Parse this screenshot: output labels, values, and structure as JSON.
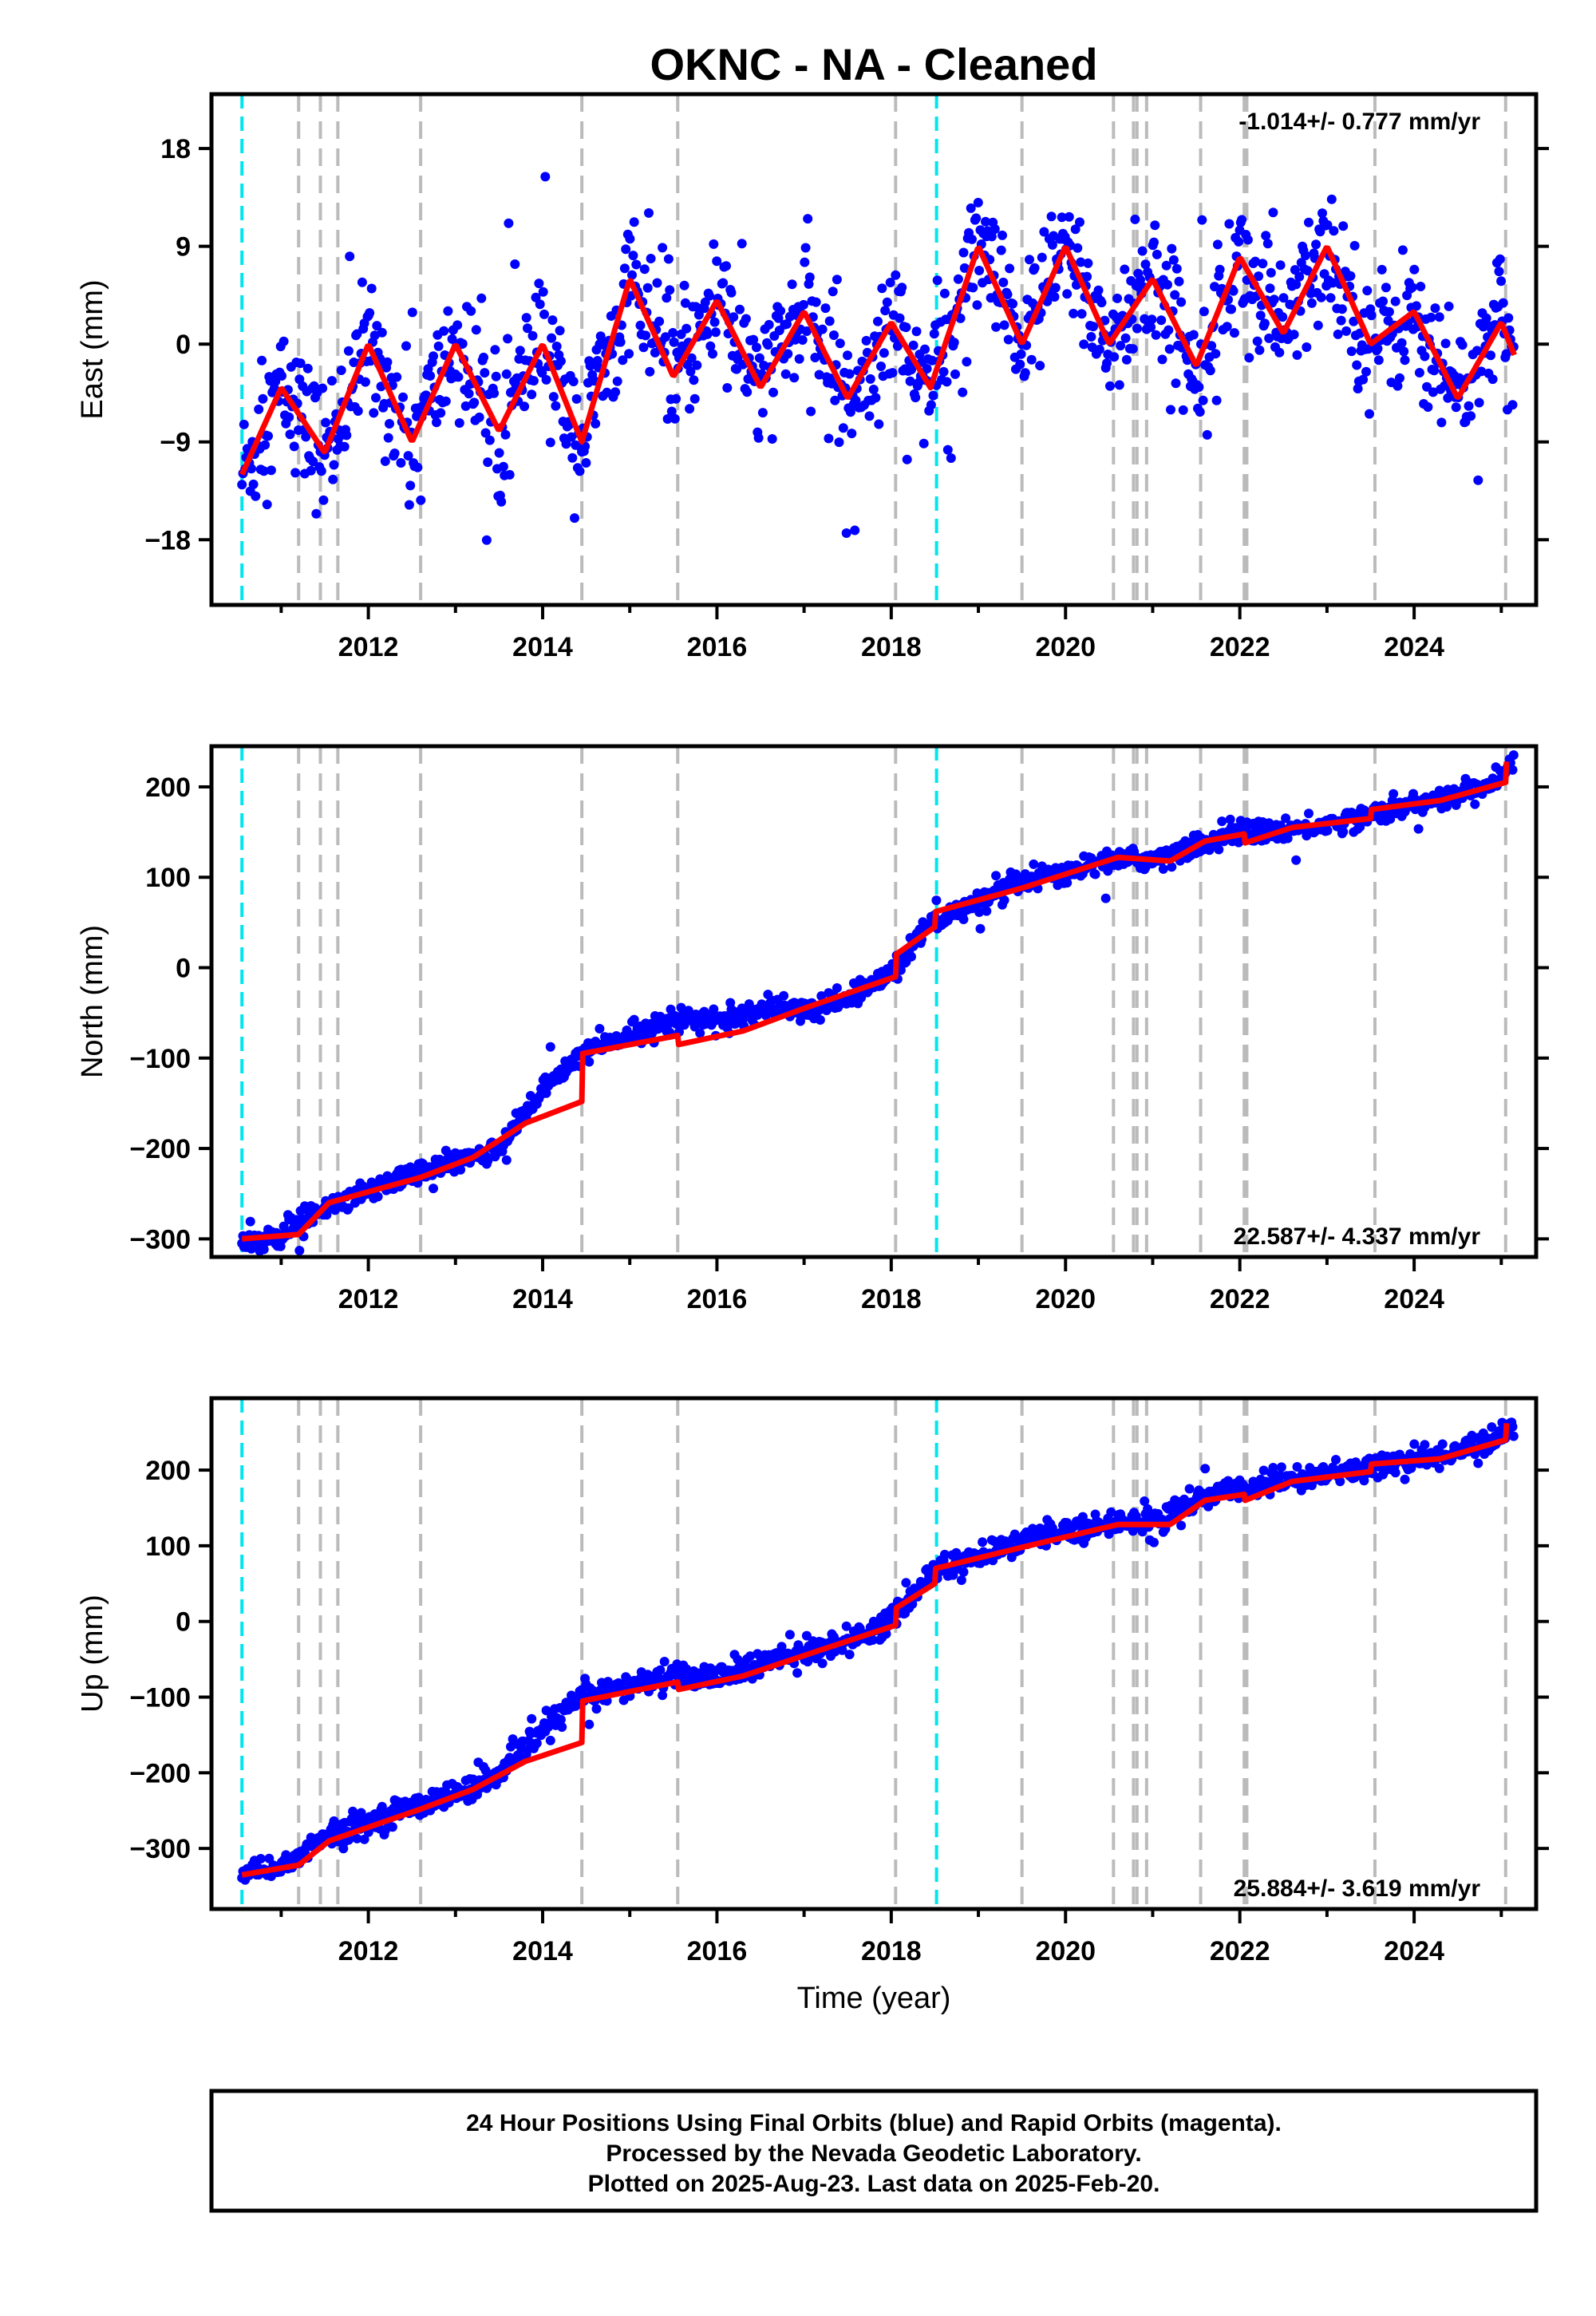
{
  "title": "OKNC  - NA - Cleaned",
  "footer": {
    "line1": "24 Hour Positions Using Final Orbits (blue) and Rapid Orbits (magenta).",
    "line2": "Processed by the Nevada Geodetic Laboratory.",
    "line3": "Plotted on 2025-Aug-23. Last data on 2025-Feb-20."
  },
  "colors": {
    "data_points": "#0000ff",
    "model_fit": "#ff0000",
    "equipment_change_lines": "#00e5ee",
    "other_event_lines": "#bbbbbb"
  },
  "chart_data": [
    {
      "type": "scatter",
      "id": "east",
      "ylabel": "East (mm)",
      "xlabel": "",
      "xlim": [
        2010.2,
        2025.4
      ],
      "ylim": [
        -24,
        23
      ],
      "yticks": [
        -18,
        -9,
        0,
        9,
        18
      ],
      "ytick_labels": [
        "−18",
        "−9",
        "0",
        "9",
        "18"
      ],
      "xticks": [
        2012,
        2014,
        2016,
        2018,
        2020,
        2022,
        2024
      ],
      "xtick_labels": [
        "2012",
        "2014",
        "2016",
        "2018",
        "2020",
        "2022",
        "2024"
      ],
      "rate_text": "-1.014+/- 0.777 mm/yr",
      "rate_position": "top-right",
      "fit": {
        "offset": 0,
        "trend": -1.0,
        "amplitude": 5.5,
        "phase_peak": 0.05,
        "noise": 3.2,
        "steps": [
          [
            2014.5,
            9.5
          ],
          [
            2015.55,
            -4.5
          ],
          [
            2018.5,
            3.0
          ],
          [
            2020.6,
            0
          ],
          [
            2021.6,
            5.5
          ],
          [
            2023.5,
            -6.5
          ]
        ],
        "base_start": -8.5
      },
      "points": [
        {
          "x": 2010.55,
          "y": -12
        },
        {
          "x": 2011.0,
          "y": -4
        },
        {
          "x": 2011.5,
          "y": -10
        },
        {
          "x": 2012.0,
          "y": 0
        },
        {
          "x": 2012.5,
          "y": -9
        },
        {
          "x": 2013.0,
          "y": 0
        },
        {
          "x": 2013.5,
          "y": -8
        },
        {
          "x": 2014.0,
          "y": 0
        },
        {
          "x": 2014.45,
          "y": -9
        },
        {
          "x": 2015.0,
          "y": 6
        },
        {
          "x": 2015.5,
          "y": -3
        },
        {
          "x": 2016.0,
          "y": 4
        },
        {
          "x": 2016.5,
          "y": -4
        },
        {
          "x": 2017.0,
          "y": 3
        },
        {
          "x": 2017.5,
          "y": -5
        },
        {
          "x": 2018.0,
          "y": 2
        },
        {
          "x": 2018.45,
          "y": -4
        },
        {
          "x": 2019.0,
          "y": 9
        },
        {
          "x": 2019.5,
          "y": 0
        },
        {
          "x": 2020.0,
          "y": 9
        },
        {
          "x": 2020.5,
          "y": 0
        },
        {
          "x": 2021.0,
          "y": 6
        },
        {
          "x": 2021.5,
          "y": -2
        },
        {
          "x": 2022.0,
          "y": 8
        },
        {
          "x": 2022.5,
          "y": 1
        },
        {
          "x": 2023.0,
          "y": 9
        },
        {
          "x": 2023.5,
          "y": 0
        },
        {
          "x": 2024.0,
          "y": 3
        },
        {
          "x": 2024.5,
          "y": -5
        },
        {
          "x": 2025.0,
          "y": 2
        },
        {
          "x": 2025.15,
          "y": -1
        }
      ]
    },
    {
      "type": "scatter",
      "id": "north",
      "ylabel": "North (mm)",
      "xlabel": "",
      "xlim": [
        2010.2,
        2025.4
      ],
      "ylim": [
        -320,
        245
      ],
      "yticks": [
        -300,
        -200,
        -100,
        0,
        100,
        200
      ],
      "ytick_labels": [
        "−300",
        "−200",
        "−100",
        "0",
        "100",
        "200"
      ],
      "xticks": [
        2012,
        2014,
        2016,
        2018,
        2020,
        2022,
        2024
      ],
      "xtick_labels": [
        "2012",
        "2014",
        "2016",
        "2018",
        "2020",
        "2022",
        "2024"
      ],
      "rate_text": "22.587+/- 4.337 mm/yr",
      "rate_position": "bottom-right",
      "points": [
        {
          "x": 2010.55,
          "y": -303
        },
        {
          "x": 2011.0,
          "y": -298
        },
        {
          "x": 2011.5,
          "y": -262
        },
        {
          "x": 2012.0,
          "y": -245
        },
        {
          "x": 2012.5,
          "y": -228
        },
        {
          "x": 2013.0,
          "y": -215
        },
        {
          "x": 2013.5,
          "y": -200
        },
        {
          "x": 2014.0,
          "y": -135
        },
        {
          "x": 2014.45,
          "y": -95
        },
        {
          "x": 2015.0,
          "y": -75
        },
        {
          "x": 2015.5,
          "y": -55
        },
        {
          "x": 2016.0,
          "y": -60
        },
        {
          "x": 2016.5,
          "y": -48
        },
        {
          "x": 2017.0,
          "y": -45
        },
        {
          "x": 2017.5,
          "y": -35
        },
        {
          "x": 2018.0,
          "y": -5
        },
        {
          "x": 2018.45,
          "y": 50
        },
        {
          "x": 2019.0,
          "y": 70
        },
        {
          "x": 2019.5,
          "y": 95
        },
        {
          "x": 2020.0,
          "y": 105
        },
        {
          "x": 2020.5,
          "y": 120
        },
        {
          "x": 2021.0,
          "y": 120
        },
        {
          "x": 2021.5,
          "y": 135
        },
        {
          "x": 2022.0,
          "y": 150
        },
        {
          "x": 2022.5,
          "y": 152
        },
        {
          "x": 2023.0,
          "y": 158
        },
        {
          "x": 2023.5,
          "y": 170
        },
        {
          "x": 2024.0,
          "y": 180
        },
        {
          "x": 2024.5,
          "y": 190
        },
        {
          "x": 2025.0,
          "y": 210
        },
        {
          "x": 2025.15,
          "y": 232
        }
      ],
      "fit_points": [
        {
          "x": 2010.55,
          "y": -300
        },
        {
          "x": 2011.2,
          "y": -295
        },
        {
          "x": 2011.55,
          "y": -260
        },
        {
          "x": 2012.6,
          "y": -232
        },
        {
          "x": 2013.2,
          "y": -210
        },
        {
          "x": 2013.8,
          "y": -172
        },
        {
          "x": 2014.45,
          "y": -148
        },
        {
          "x": 2014.46,
          "y": -95
        },
        {
          "x": 2015.55,
          "y": -75
        },
        {
          "x": 2015.56,
          "y": -85
        },
        {
          "x": 2016.3,
          "y": -70
        },
        {
          "x": 2017.0,
          "y": -45
        },
        {
          "x": 2018.05,
          "y": -10
        },
        {
          "x": 2018.06,
          "y": 15
        },
        {
          "x": 2018.5,
          "y": 45
        },
        {
          "x": 2018.51,
          "y": 62
        },
        {
          "x": 2019.5,
          "y": 88
        },
        {
          "x": 2020.6,
          "y": 122
        },
        {
          "x": 2021.2,
          "y": 118
        },
        {
          "x": 2021.6,
          "y": 140
        },
        {
          "x": 2022.05,
          "y": 148
        },
        {
          "x": 2022.06,
          "y": 138
        },
        {
          "x": 2022.6,
          "y": 155
        },
        {
          "x": 2023.5,
          "y": 165
        },
        {
          "x": 2023.51,
          "y": 175
        },
        {
          "x": 2024.3,
          "y": 185
        },
        {
          "x": 2025.05,
          "y": 205
        },
        {
          "x": 2025.06,
          "y": 228
        }
      ]
    },
    {
      "type": "scatter",
      "id": "up",
      "ylabel": "Up (mm)",
      "xlabel": "Time (year)",
      "xlim": [
        2010.2,
        2025.4
      ],
      "ylim": [
        -380,
        295
      ],
      "yticks": [
        -300,
        -200,
        -100,
        0,
        100,
        200
      ],
      "ytick_labels": [
        "−300",
        "−200",
        "−100",
        "0",
        "100",
        "200"
      ],
      "xticks": [
        2012,
        2014,
        2016,
        2018,
        2020,
        2022,
        2024
      ],
      "xtick_labels": [
        "2012",
        "2014",
        "2016",
        "2018",
        "2020",
        "2022",
        "2024"
      ],
      "rate_text": "25.884+/- 3.619 mm/yr",
      "rate_position": "bottom-right",
      "points": [
        {
          "x": 2010.55,
          "y": -335
        },
        {
          "x": 2011.0,
          "y": -325
        },
        {
          "x": 2011.5,
          "y": -285
        },
        {
          "x": 2012.0,
          "y": -265
        },
        {
          "x": 2012.5,
          "y": -245
        },
        {
          "x": 2013.0,
          "y": -228
        },
        {
          "x": 2013.5,
          "y": -205
        },
        {
          "x": 2014.0,
          "y": -145
        },
        {
          "x": 2014.45,
          "y": -100
        },
        {
          "x": 2015.0,
          "y": -85
        },
        {
          "x": 2015.5,
          "y": -70
        },
        {
          "x": 2016.0,
          "y": -75
        },
        {
          "x": 2016.5,
          "y": -55
        },
        {
          "x": 2017.0,
          "y": -42
        },
        {
          "x": 2017.5,
          "y": -25
        },
        {
          "x": 2018.0,
          "y": 0
        },
        {
          "x": 2018.45,
          "y": 65
        },
        {
          "x": 2019.0,
          "y": 85
        },
        {
          "x": 2019.5,
          "y": 105
        },
        {
          "x": 2020.0,
          "y": 120
        },
        {
          "x": 2020.5,
          "y": 130
        },
        {
          "x": 2021.0,
          "y": 132
        },
        {
          "x": 2021.5,
          "y": 160
        },
        {
          "x": 2022.0,
          "y": 175
        },
        {
          "x": 2022.5,
          "y": 185
        },
        {
          "x": 2023.0,
          "y": 195
        },
        {
          "x": 2023.5,
          "y": 205
        },
        {
          "x": 2024.0,
          "y": 212
        },
        {
          "x": 2024.5,
          "y": 225
        },
        {
          "x": 2025.0,
          "y": 245
        },
        {
          "x": 2025.15,
          "y": 262
        }
      ],
      "fit_points": [
        {
          "x": 2010.55,
          "y": -335
        },
        {
          "x": 2011.2,
          "y": -322
        },
        {
          "x": 2011.55,
          "y": -290
        },
        {
          "x": 2012.6,
          "y": -248
        },
        {
          "x": 2013.2,
          "y": -222
        },
        {
          "x": 2013.8,
          "y": -185
        },
        {
          "x": 2014.45,
          "y": -160
        },
        {
          "x": 2014.46,
          "y": -105
        },
        {
          "x": 2015.55,
          "y": -80
        },
        {
          "x": 2015.56,
          "y": -90
        },
        {
          "x": 2016.3,
          "y": -72
        },
        {
          "x": 2017.0,
          "y": -45
        },
        {
          "x": 2018.05,
          "y": -5
        },
        {
          "x": 2018.06,
          "y": 18
        },
        {
          "x": 2018.5,
          "y": 50
        },
        {
          "x": 2018.51,
          "y": 70
        },
        {
          "x": 2019.5,
          "y": 98
        },
        {
          "x": 2020.6,
          "y": 128
        },
        {
          "x": 2021.2,
          "y": 128
        },
        {
          "x": 2021.6,
          "y": 160
        },
        {
          "x": 2022.05,
          "y": 168
        },
        {
          "x": 2022.06,
          "y": 160
        },
        {
          "x": 2022.6,
          "y": 185
        },
        {
          "x": 2023.5,
          "y": 198
        },
        {
          "x": 2023.51,
          "y": 208
        },
        {
          "x": 2024.3,
          "y": 215
        },
        {
          "x": 2025.05,
          "y": 240
        },
        {
          "x": 2025.06,
          "y": 262
        }
      ]
    }
  ],
  "event_lines": {
    "equipment": [
      2010.55,
      2018.52
    ],
    "other": [
      2011.2,
      2011.45,
      2011.65,
      2012.6,
      2014.45,
      2015.55,
      2018.05,
      2019.5,
      2020.55,
      2020.78,
      2020.82,
      2020.93,
      2021.55,
      2022.05,
      2022.08,
      2023.55,
      2025.05
    ]
  }
}
